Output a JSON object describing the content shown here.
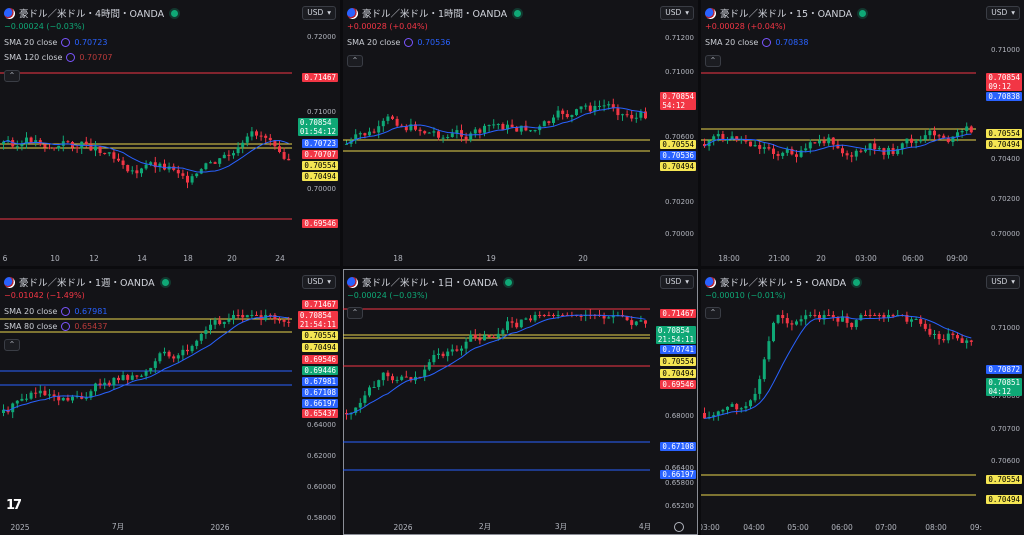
{
  "colors": {
    "up": "#0fa876",
    "down": "#f23645",
    "sma_blue": "#2962ff",
    "sma_red": "#b83a3a",
    "hline_red": "#f23645",
    "hline_yellow": "#e8d44d",
    "hline_blue": "#2962ff"
  },
  "panels": [
    {
      "id": "p1",
      "title": "豪ドル／米ドル・4時間・OANDA",
      "change": "−0.00024 (−0.03%)",
      "change_color": "#0fa876",
      "currency": "USD",
      "indicators": [
        {
          "label": "SMA 20 close",
          "value": "0.70723",
          "color": "#2962ff"
        },
        {
          "label": "SMA 120 close",
          "value": "0.70707",
          "color": "#b83a3a"
        }
      ],
      "y_labels": [
        "0.72000",
        "0.71000",
        "0.70000"
      ],
      "x_labels": [
        "6",
        "10",
        "12",
        "14",
        "18",
        "20",
        "24"
      ],
      "tags": [
        {
          "text": "0.71467",
          "bg": "#f23645",
          "fg": "#fff"
        },
        {
          "text": "0.70854\n01:54:12",
          "bg": "#0fa876",
          "fg": "#fff"
        },
        {
          "text": "0.70723",
          "bg": "#2962ff",
          "fg": "#fff"
        },
        {
          "text": "0.70707",
          "bg": "#f23645",
          "fg": "#fff"
        },
        {
          "text": "0.70554",
          "bg": "#f5e653",
          "fg": "#000"
        },
        {
          "text": "0.70494",
          "bg": "#f5e653",
          "fg": "#000"
        },
        {
          "text": "0.69546",
          "bg": "#f23645",
          "fg": "#fff"
        }
      ]
    },
    {
      "id": "p2",
      "title": "豪ドル／米ドル・1時間・OANDA",
      "change": "+0.00028 (+0.04%)",
      "change_color": "#f23645",
      "currency": "USD",
      "indicators": [
        {
          "label": "SMA 20 close",
          "value": "0.70536",
          "color": "#2962ff"
        }
      ],
      "y_labels": [
        "0.71200",
        "0.71000",
        "0.70600",
        "0.70200",
        "0.70000"
      ],
      "x_labels": [
        "18",
        "19",
        "20"
      ],
      "tags": [
        {
          "text": "0.70854\n54:12",
          "bg": "#f23645",
          "fg": "#fff"
        },
        {
          "text": "0.70554",
          "bg": "#f5e653",
          "fg": "#000"
        },
        {
          "text": "0.70536",
          "bg": "#2962ff",
          "fg": "#fff"
        },
        {
          "text": "0.70494",
          "bg": "#f5e653",
          "fg": "#000"
        }
      ]
    },
    {
      "id": "p3",
      "title": "豪ドル／米ドル・15・OANDA",
      "change": "+0.00028 (+0.04%)",
      "change_color": "#f23645",
      "currency": "USD",
      "indicators": [
        {
          "label": "SMA 20 close",
          "value": "0.70838",
          "color": "#2962ff"
        }
      ],
      "y_labels": [
        "0.71000",
        "0.70400",
        "0.70200",
        "0.70000"
      ],
      "x_labels": [
        "18:00",
        "21:00",
        "20",
        "03:00",
        "06:00",
        "09:00"
      ],
      "tags": [
        {
          "text": "0.70854\n09:12",
          "bg": "#f23645",
          "fg": "#fff"
        },
        {
          "text": "0.70838",
          "bg": "#2962ff",
          "fg": "#fff"
        },
        {
          "text": "0.70554",
          "bg": "#f5e653",
          "fg": "#000"
        },
        {
          "text": "0.70494",
          "bg": "#f5e653",
          "fg": "#000"
        }
      ]
    },
    {
      "id": "p4",
      "title": "豪ドル／米ドル・1週・OANDA",
      "change": "−0.01042 (−1.49%)",
      "change_color": "#f23645",
      "currency": "USD",
      "indicators": [
        {
          "label": "SMA 20 close",
          "value": "0.67981",
          "color": "#2962ff"
        },
        {
          "label": "SMA 80 close",
          "value": "0.65437",
          "color": "#b83a3a"
        }
      ],
      "y_labels": [
        "0.64000",
        "0.62000",
        "0.60000",
        "0.58000"
      ],
      "x_labels": [
        "2025",
        "7月",
        "2026"
      ],
      "tags": [
        {
          "text": "0.71467",
          "bg": "#f23645",
          "fg": "#fff"
        },
        {
          "text": "0.70854\n21:54:11",
          "bg": "#f23645",
          "fg": "#fff"
        },
        {
          "text": "0.70554",
          "bg": "#f5e653",
          "fg": "#000"
        },
        {
          "text": "0.70494",
          "bg": "#f5e653",
          "fg": "#000"
        },
        {
          "text": "0.69546",
          "bg": "#f23645",
          "fg": "#fff"
        },
        {
          "text": "0.69446",
          "bg": "#0fa876",
          "fg": "#fff"
        },
        {
          "text": "0.67981",
          "bg": "#2962ff",
          "fg": "#fff"
        },
        {
          "text": "0.67108",
          "bg": "#2962ff",
          "fg": "#fff"
        },
        {
          "text": "0.66197",
          "bg": "#2962ff",
          "fg": "#fff"
        },
        {
          "text": "0.65437",
          "bg": "#f23645",
          "fg": "#fff"
        }
      ]
    },
    {
      "id": "p5",
      "title": "豪ドル／米ドル・1日・OANDA",
      "change": "−0.00024 (−0.03%)",
      "change_color": "#0fa876",
      "currency": "USD",
      "indicators": [],
      "y_labels": [
        "0.68000",
        "0.66400",
        "0.65800",
        "0.65200"
      ],
      "x_labels": [
        "2026",
        "2月",
        "3月",
        "4月"
      ],
      "tags": [
        {
          "text": "0.71467",
          "bg": "#f23645",
          "fg": "#fff"
        },
        {
          "text": "0.70854\n21:54:11",
          "bg": "#0fa876",
          "fg": "#fff"
        },
        {
          "text": "0.70741",
          "bg": "#2962ff",
          "fg": "#fff"
        },
        {
          "text": "0.70554",
          "bg": "#f5e653",
          "fg": "#000"
        },
        {
          "text": "0.70494",
          "bg": "#f5e653",
          "fg": "#000"
        },
        {
          "text": "0.69546",
          "bg": "#f23645",
          "fg": "#fff"
        },
        {
          "text": "0.67108",
          "bg": "#2962ff",
          "fg": "#fff"
        },
        {
          "text": "0.66197",
          "bg": "#2962ff",
          "fg": "#fff"
        }
      ]
    },
    {
      "id": "p6",
      "title": "豪ドル／米ドル・5・OANDA",
      "change": "−0.00010 (−0.01%)",
      "change_color": "#0fa876",
      "currency": "USD",
      "indicators": [],
      "y_labels": [
        "0.71000",
        "0.70800",
        "0.70700",
        "0.70600"
      ],
      "x_labels": [
        "03:00",
        "04:00",
        "05:00",
        "06:00",
        "07:00",
        "08:00",
        "09:"
      ],
      "tags": [
        {
          "text": "0.70872",
          "bg": "#2962ff",
          "fg": "#fff"
        },
        {
          "text": "0.70851\n04:12",
          "bg": "#0fa876",
          "fg": "#fff"
        },
        {
          "text": "0.70554",
          "bg": "#f5e653",
          "fg": "#000"
        },
        {
          "text": "0.70494",
          "bg": "#f5e653",
          "fg": "#000"
        }
      ]
    }
  ]
}
